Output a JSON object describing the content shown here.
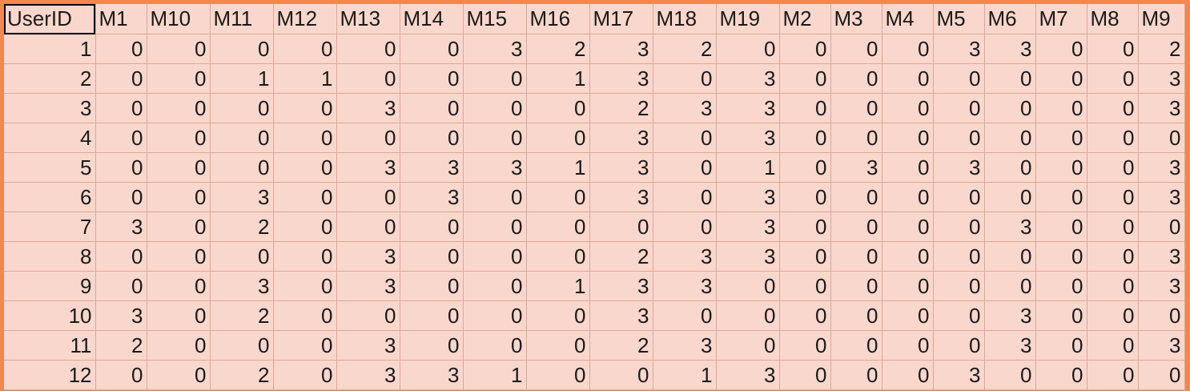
{
  "sheet": {
    "headers": [
      "UserID",
      "M1",
      "M10",
      "M11",
      "M12",
      "M13",
      "M14",
      "M15",
      "M16",
      "M17",
      "M18",
      "M19",
      "M2",
      "M3",
      "M4",
      "M5",
      "M6",
      "M7",
      "M8",
      "M9"
    ],
    "rows": [
      [
        1,
        0,
        0,
        0,
        0,
        0,
        0,
        3,
        2,
        3,
        2,
        0,
        0,
        0,
        0,
        3,
        3,
        0,
        0,
        2
      ],
      [
        2,
        0,
        0,
        1,
        1,
        0,
        0,
        0,
        1,
        3,
        0,
        3,
        0,
        0,
        0,
        0,
        0,
        0,
        0,
        3
      ],
      [
        3,
        0,
        0,
        0,
        0,
        3,
        0,
        0,
        0,
        2,
        3,
        3,
        0,
        0,
        0,
        0,
        0,
        0,
        0,
        3
      ],
      [
        4,
        0,
        0,
        0,
        0,
        0,
        0,
        0,
        0,
        3,
        0,
        3,
        0,
        0,
        0,
        0,
        0,
        0,
        0,
        0
      ],
      [
        5,
        0,
        0,
        0,
        0,
        3,
        3,
        3,
        1,
        3,
        0,
        1,
        0,
        3,
        0,
        3,
        0,
        0,
        0,
        3
      ],
      [
        6,
        0,
        0,
        3,
        0,
        0,
        3,
        0,
        0,
        3,
        0,
        3,
        0,
        0,
        0,
        0,
        0,
        0,
        0,
        3
      ],
      [
        7,
        3,
        0,
        2,
        0,
        0,
        0,
        0,
        0,
        0,
        0,
        3,
        0,
        0,
        0,
        0,
        3,
        0,
        0,
        0
      ],
      [
        8,
        0,
        0,
        0,
        0,
        3,
        0,
        0,
        0,
        2,
        3,
        3,
        0,
        0,
        0,
        0,
        0,
        0,
        0,
        3
      ],
      [
        9,
        0,
        0,
        3,
        0,
        3,
        0,
        0,
        1,
        3,
        3,
        0,
        0,
        0,
        0,
        0,
        0,
        0,
        0,
        3
      ],
      [
        10,
        3,
        0,
        2,
        0,
        0,
        0,
        0,
        0,
        3,
        0,
        0,
        0,
        0,
        0,
        0,
        3,
        0,
        0,
        0
      ],
      [
        11,
        2,
        0,
        0,
        0,
        3,
        0,
        0,
        0,
        2,
        3,
        0,
        0,
        0,
        0,
        0,
        3,
        0,
        0,
        3
      ],
      [
        12,
        0,
        0,
        2,
        0,
        3,
        3,
        1,
        0,
        0,
        1,
        3,
        0,
        0,
        0,
        3,
        0,
        0,
        0,
        0
      ]
    ]
  },
  "colors": {
    "cell_background": "#fad7cc",
    "frame_background": "#f4874c",
    "grid_lines": "#d9a898"
  }
}
